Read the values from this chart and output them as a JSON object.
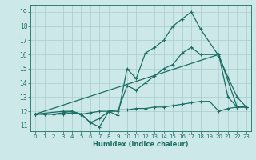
{
  "bg_color": "#cde8e8",
  "line_color": "#1a6e64",
  "grid_color": "#aacccc",
  "xlabel": "Humidex (Indice chaleur)",
  "xlim": [
    -0.5,
    23.5
  ],
  "ylim": [
    10.6,
    19.5
  ],
  "xticks": [
    0,
    1,
    2,
    3,
    4,
    5,
    6,
    7,
    8,
    9,
    10,
    11,
    12,
    13,
    14,
    15,
    16,
    17,
    18,
    19,
    20,
    21,
    22,
    23
  ],
  "yticks": [
    11,
    12,
    13,
    14,
    15,
    16,
    17,
    18,
    19
  ],
  "line1_x": [
    0,
    1,
    2,
    3,
    4,
    5,
    6,
    7,
    8,
    9,
    10,
    11,
    12,
    13,
    14,
    15,
    16,
    17,
    18,
    20,
    21,
    22,
    23
  ],
  "line1_y": [
    11.8,
    11.8,
    11.8,
    11.8,
    11.9,
    11.8,
    11.2,
    10.9,
    12.0,
    11.7,
    15.0,
    14.3,
    16.1,
    16.5,
    17.0,
    18.0,
    18.5,
    19.0,
    17.8,
    15.9,
    14.4,
    13.0,
    12.3
  ],
  "line2_x": [
    0,
    3,
    4,
    5,
    6,
    7,
    8,
    9,
    10,
    11,
    12,
    13,
    14,
    15,
    16,
    17,
    18,
    20,
    21,
    22,
    23
  ],
  "line2_y": [
    11.8,
    12.0,
    12.0,
    11.8,
    11.2,
    11.5,
    12.0,
    12.0,
    13.8,
    13.5,
    14.0,
    14.5,
    15.0,
    15.3,
    16.1,
    16.5,
    16.0,
    16.0,
    13.0,
    12.3,
    12.3
  ],
  "line3_x": [
    0,
    20,
    22,
    23
  ],
  "line3_y": [
    11.8,
    16.0,
    12.3,
    12.3
  ],
  "line4_x": [
    0,
    1,
    2,
    3,
    4,
    5,
    6,
    7,
    8,
    9,
    10,
    11,
    12,
    13,
    14,
    15,
    16,
    17,
    18,
    19,
    20,
    21,
    22,
    23
  ],
  "line4_y": [
    11.8,
    11.8,
    11.8,
    11.9,
    12.0,
    11.8,
    11.9,
    12.0,
    12.0,
    12.1,
    12.1,
    12.2,
    12.2,
    12.3,
    12.3,
    12.4,
    12.5,
    12.6,
    12.7,
    12.7,
    12.0,
    12.2,
    12.3,
    12.3
  ]
}
